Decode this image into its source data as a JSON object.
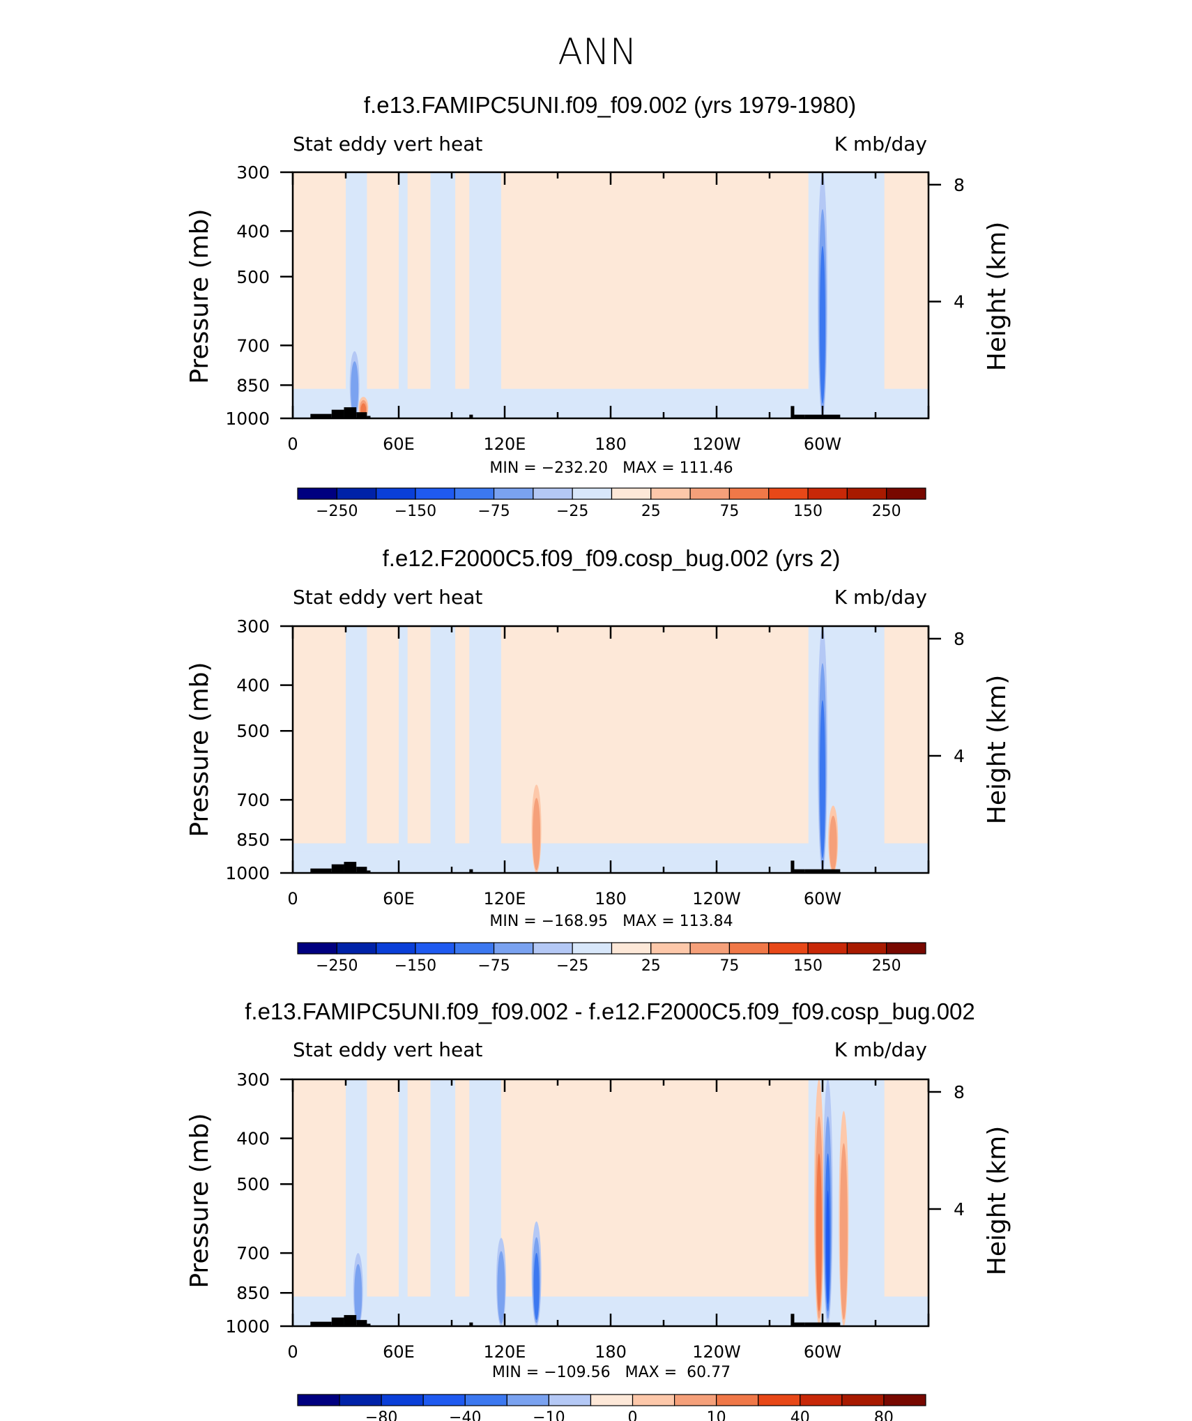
{
  "page_title": "ANN",
  "chart_data": [
    {
      "type": "heatmap",
      "title": "f.e13.FAMIPC5UNI.f09_f09.002 (yrs 1979-1980)",
      "left_label": "Stat eddy vert heat",
      "right_label": "K mb/day",
      "ylabel": "Pressure (mb)",
      "ylabel_right": "Height (km)",
      "x_ticks": [
        "0",
        "60E",
        "120E",
        "180",
        "120W",
        "60W"
      ],
      "y_ticks": [
        "300",
        "400",
        "500",
        "700",
        "850",
        "1000"
      ],
      "y2_ticks": [
        "8",
        "4"
      ],
      "stats": "MIN = −232.20   MAX = 111.46",
      "colorbar_labels": [
        "−250",
        "−150",
        "−75",
        "−25",
        "25",
        "75",
        "150",
        "250"
      ],
      "features": [
        {
          "lon": 300,
          "p_top": 300,
          "sign": -1,
          "strength": 2
        },
        {
          "lon": 35,
          "p_top": 720,
          "sign": -1,
          "strength": 1
        },
        {
          "lon": 40,
          "p_top": 900,
          "sign": 1,
          "strength": 2
        }
      ]
    },
    {
      "type": "heatmap",
      "title": "f.e12.F2000C5.f09_f09.cosp_bug.002 (yrs 2)",
      "left_label": "Stat eddy vert heat",
      "right_label": "K mb/day",
      "ylabel": "Pressure (mb)",
      "ylabel_right": "Height (km)",
      "x_ticks": [
        "0",
        "60E",
        "120E",
        "180",
        "120W",
        "60W"
      ],
      "y_ticks": [
        "300",
        "400",
        "500",
        "700",
        "850",
        "1000"
      ],
      "y2_ticks": [
        "8",
        "4"
      ],
      "stats": "MIN = −168.95   MAX = 113.84",
      "colorbar_labels": [
        "−250",
        "−150",
        "−75",
        "−25",
        "25",
        "75",
        "150",
        "250"
      ],
      "features": [
        {
          "lon": 300,
          "p_top": 300,
          "sign": -1,
          "strength": 2
        },
        {
          "lon": 138,
          "p_top": 650,
          "sign": 1,
          "strength": 1
        },
        {
          "lon": 306,
          "p_top": 720,
          "sign": 1,
          "strength": 1
        }
      ]
    },
    {
      "type": "heatmap",
      "title": "f.e13.FAMIPC5UNI.f09_f09.002 - f.e12.F2000C5.f09_f09.cosp_bug.002",
      "left_label": "Stat eddy vert heat",
      "right_label": "K mb/day",
      "ylabel": "Pressure (mb)",
      "ylabel_right": "Height (km)",
      "x_ticks": [
        "0",
        "60E",
        "120E",
        "180",
        "120W",
        "60W"
      ],
      "y_ticks": [
        "300",
        "400",
        "500",
        "700",
        "850",
        "1000"
      ],
      "y2_ticks": [
        "8",
        "4"
      ],
      "stats": "MIN = −109.56   MAX =  60.77",
      "colorbar_labels": [
        "−80",
        "−40",
        "−10",
        "0",
        "10",
        "40",
        "80"
      ],
      "features": [
        {
          "lon": 298,
          "p_top": 300,
          "sign": 1,
          "strength": 2
        },
        {
          "lon": 303,
          "p_top": 300,
          "sign": -1,
          "strength": 3
        },
        {
          "lon": 138,
          "p_top": 600,
          "sign": -1,
          "strength": 2
        },
        {
          "lon": 118,
          "p_top": 650,
          "sign": -1,
          "strength": 1
        },
        {
          "lon": 312,
          "p_top": 350,
          "sign": 1,
          "strength": 1
        },
        {
          "lon": 37,
          "p_top": 700,
          "sign": -1,
          "strength": 1
        }
      ]
    }
  ],
  "colors": {
    "scale": [
      "#000080",
      "#0022a8",
      "#0a3fd8",
      "#1f5af0",
      "#3c78f0",
      "#7aa2f0",
      "#b4c8f5",
      "#d8e7fa",
      "#fde8d8",
      "#fdc8aa",
      "#f5a07a",
      "#f07848",
      "#e84818",
      "#c82808",
      "#a81a00",
      "#780800"
    ],
    "land": "#000000"
  }
}
